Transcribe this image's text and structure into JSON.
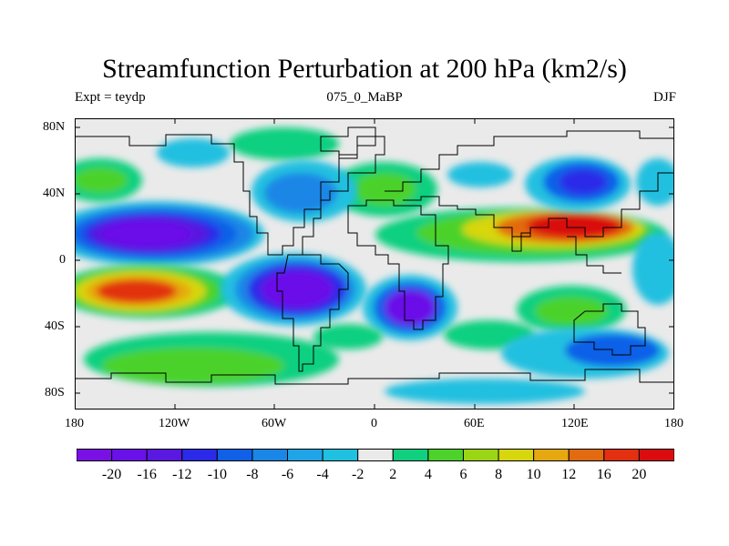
{
  "title": "Streamfunction Perturbation at 200 hPa (km2/s)",
  "subtitle_left": "Expt = teydp",
  "subtitle_center": "075_0_MaBP",
  "subtitle_right": "DJF",
  "lat_labels": [
    "80N",
    "40N",
    "0",
    "40S",
    "80S"
  ],
  "lon_labels": [
    "180",
    "120W",
    "60W",
    "0",
    "60E",
    "120E",
    "180"
  ],
  "colorbar": {
    "colors": [
      "#7a10e4",
      "#6a10e8",
      "#5a18e0",
      "#2a2ae8",
      "#1060e8",
      "#1a86e6",
      "#20a4e8",
      "#20c0e0",
      "#eaeaea",
      "#10d080",
      "#4cd22a",
      "#9ad616",
      "#d8d60e",
      "#e6a810",
      "#e26a10",
      "#e23010",
      "#da0c10"
    ],
    "labels": [
      "-20",
      "-16",
      "-12",
      "-10",
      "-8",
      "-6",
      "-4",
      "-2",
      "2",
      "4",
      "6",
      "8",
      "10",
      "12",
      "16",
      "20"
    ]
  }
}
